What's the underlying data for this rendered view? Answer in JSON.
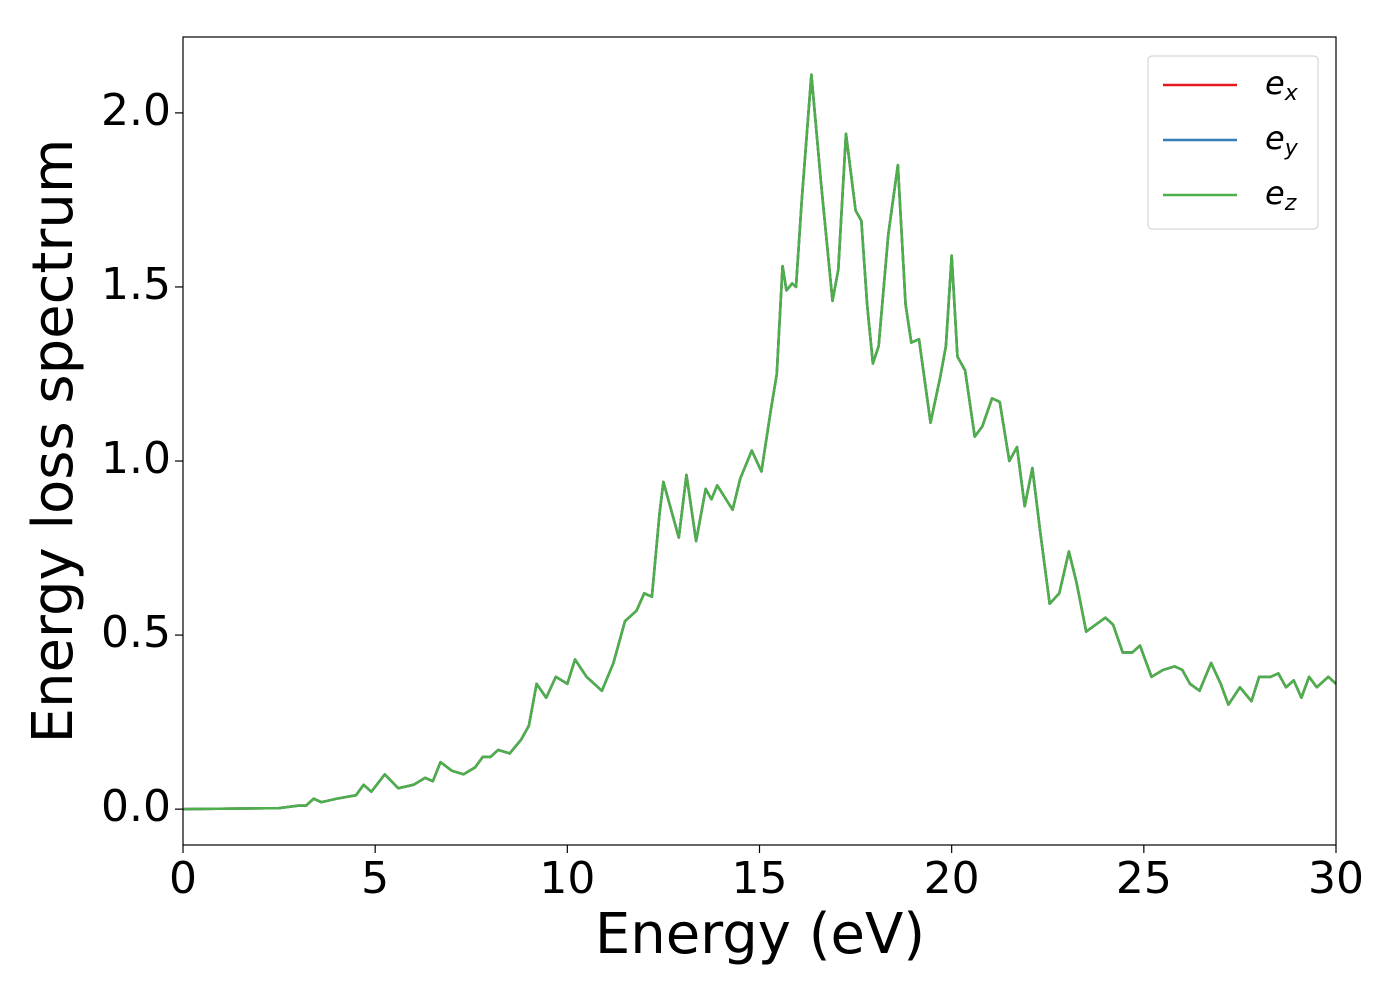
{
  "chart_data": {
    "type": "line",
    "xlabel": "Energy (eV)",
    "ylabel": "Energy loss spectrum",
    "xlim": [
      0,
      30
    ],
    "ylim": [
      -0.103,
      2.218
    ],
    "xticks": [
      0,
      5,
      10,
      15,
      20,
      25,
      30
    ],
    "yticks": [
      {
        "value": 0,
        "label": "0.0"
      },
      {
        "value": 0.5,
        "label": "0.5"
      },
      {
        "value": 1,
        "label": "1.0"
      },
      {
        "value": 1.5,
        "label": "1.5"
      },
      {
        "value": 2,
        "label": "2.0"
      }
    ],
    "legend": "upper right",
    "x": [
      0,
      2.5,
      3,
      3.2,
      3.4,
      3.6,
      4,
      4.5,
      4.7,
      4.9,
      5.25,
      5.6,
      6,
      6.3,
      6.5,
      6.7,
      7,
      7.3,
      7.6,
      7.8,
      8,
      8.2,
      8.5,
      8.8,
      9,
      9.2,
      9.45,
      9.7,
      10,
      10.2,
      10.5,
      10.9,
      11.2,
      11.5,
      11.8,
      12,
      12.2,
      12.4,
      12.5,
      12.9,
      13.1,
      13.35,
      13.6,
      13.75,
      13.9,
      14.3,
      14.5,
      14.8,
      15.05,
      15.3,
      15.45,
      15.6,
      15.7,
      15.85,
      15.95,
      16.1,
      16.35,
      16.6,
      16.9,
      17.05,
      17.25,
      17.5,
      17.65,
      17.8,
      17.95,
      18.1,
      18.35,
      18.6,
      18.8,
      18.95,
      19.15,
      19.45,
      19.7,
      19.85,
      20,
      20.15,
      20.35,
      20.6,
      20.8,
      21.05,
      21.25,
      21.5,
      21.7,
      21.9,
      22.1,
      22.3,
      22.55,
      22.8,
      23.05,
      23.25,
      23.5,
      23.75,
      24,
      24.2,
      24.45,
      24.7,
      24.9,
      25.2,
      25.5,
      25.8,
      26,
      26.2,
      26.45,
      26.75,
      27,
      27.2,
      27.5,
      27.8,
      28,
      28.3,
      28.5,
      28.7,
      28.9,
      29.1,
      29.3,
      29.5,
      29.8,
      30
    ],
    "series": [
      {
        "name": "ex",
        "color": "#e41a1c",
        "values": [
          0,
          0.003,
          0.01,
          0.01,
          0.03,
          0.02,
          0.03,
          0.04,
          0.07,
          0.05,
          0.1,
          0.06,
          0.07,
          0.09,
          0.08,
          0.135,
          0.11,
          0.1,
          0.12,
          0.15,
          0.15,
          0.17,
          0.16,
          0.2,
          0.24,
          0.36,
          0.32,
          0.38,
          0.36,
          0.43,
          0.38,
          0.34,
          0.42,
          0.54,
          0.57,
          0.62,
          0.61,
          0.85,
          0.94,
          0.78,
          0.96,
          0.77,
          0.92,
          0.89,
          0.93,
          0.86,
          0.95,
          1.03,
          0.97,
          1.15,
          1.25,
          1.56,
          1.49,
          1.51,
          1.5,
          1.75,
          2.11,
          1.8,
          1.46,
          1.55,
          1.94,
          1.72,
          1.69,
          1.45,
          1.28,
          1.33,
          1.65,
          1.85,
          1.45,
          1.34,
          1.35,
          1.11,
          1.24,
          1.33,
          1.59,
          1.3,
          1.26,
          1.07,
          1.1,
          1.18,
          1.17,
          1,
          1.04,
          0.87,
          0.98,
          0.8,
          0.59,
          0.62,
          0.74,
          0.65,
          0.51,
          0.53,
          0.55,
          0.53,
          0.45,
          0.45,
          0.47,
          0.38,
          0.4,
          0.41,
          0.4,
          0.36,
          0.34,
          0.42,
          0.36,
          0.3,
          0.35,
          0.31,
          0.38,
          0.38,
          0.39,
          0.35,
          0.37,
          0.32,
          0.38,
          0.35,
          0.38,
          0.36
        ]
      },
      {
        "name": "ey",
        "color": "#377eb8",
        "values": [
          0,
          0.003,
          0.01,
          0.01,
          0.03,
          0.02,
          0.03,
          0.04,
          0.07,
          0.05,
          0.1,
          0.06,
          0.07,
          0.09,
          0.08,
          0.135,
          0.11,
          0.1,
          0.12,
          0.15,
          0.15,
          0.17,
          0.16,
          0.2,
          0.24,
          0.36,
          0.32,
          0.38,
          0.36,
          0.43,
          0.38,
          0.34,
          0.42,
          0.54,
          0.57,
          0.62,
          0.61,
          0.85,
          0.94,
          0.78,
          0.96,
          0.77,
          0.92,
          0.89,
          0.93,
          0.86,
          0.95,
          1.03,
          0.97,
          1.15,
          1.25,
          1.56,
          1.49,
          1.51,
          1.5,
          1.75,
          2.11,
          1.8,
          1.46,
          1.55,
          1.94,
          1.72,
          1.69,
          1.45,
          1.28,
          1.33,
          1.65,
          1.85,
          1.45,
          1.34,
          1.35,
          1.11,
          1.24,
          1.33,
          1.59,
          1.3,
          1.26,
          1.07,
          1.1,
          1.18,
          1.17,
          1,
          1.04,
          0.87,
          0.98,
          0.8,
          0.59,
          0.62,
          0.74,
          0.65,
          0.51,
          0.53,
          0.55,
          0.53,
          0.45,
          0.45,
          0.47,
          0.38,
          0.4,
          0.41,
          0.4,
          0.36,
          0.34,
          0.42,
          0.36,
          0.3,
          0.35,
          0.31,
          0.38,
          0.38,
          0.39,
          0.35,
          0.37,
          0.32,
          0.38,
          0.35,
          0.38,
          0.36
        ]
      },
      {
        "name": "ez",
        "color": "#4daf4a",
        "values": [
          0,
          0.003,
          0.01,
          0.01,
          0.03,
          0.02,
          0.03,
          0.04,
          0.07,
          0.05,
          0.1,
          0.06,
          0.07,
          0.09,
          0.08,
          0.135,
          0.11,
          0.1,
          0.12,
          0.15,
          0.15,
          0.17,
          0.16,
          0.2,
          0.24,
          0.36,
          0.32,
          0.38,
          0.36,
          0.43,
          0.38,
          0.34,
          0.42,
          0.54,
          0.57,
          0.62,
          0.61,
          0.85,
          0.94,
          0.78,
          0.96,
          0.77,
          0.92,
          0.89,
          0.93,
          0.86,
          0.95,
          1.03,
          0.97,
          1.15,
          1.25,
          1.56,
          1.49,
          1.51,
          1.5,
          1.75,
          2.11,
          1.8,
          1.46,
          1.55,
          1.94,
          1.72,
          1.69,
          1.45,
          1.28,
          1.33,
          1.65,
          1.85,
          1.45,
          1.34,
          1.35,
          1.11,
          1.24,
          1.33,
          1.59,
          1.3,
          1.26,
          1.07,
          1.1,
          1.18,
          1.17,
          1,
          1.04,
          0.87,
          0.98,
          0.8,
          0.59,
          0.62,
          0.74,
          0.65,
          0.51,
          0.53,
          0.55,
          0.53,
          0.45,
          0.45,
          0.47,
          0.38,
          0.4,
          0.41,
          0.4,
          0.36,
          0.34,
          0.42,
          0.36,
          0.3,
          0.35,
          0.31,
          0.38,
          0.38,
          0.39,
          0.35,
          0.37,
          0.32,
          0.38,
          0.35,
          0.38,
          0.36
        ]
      }
    ]
  }
}
